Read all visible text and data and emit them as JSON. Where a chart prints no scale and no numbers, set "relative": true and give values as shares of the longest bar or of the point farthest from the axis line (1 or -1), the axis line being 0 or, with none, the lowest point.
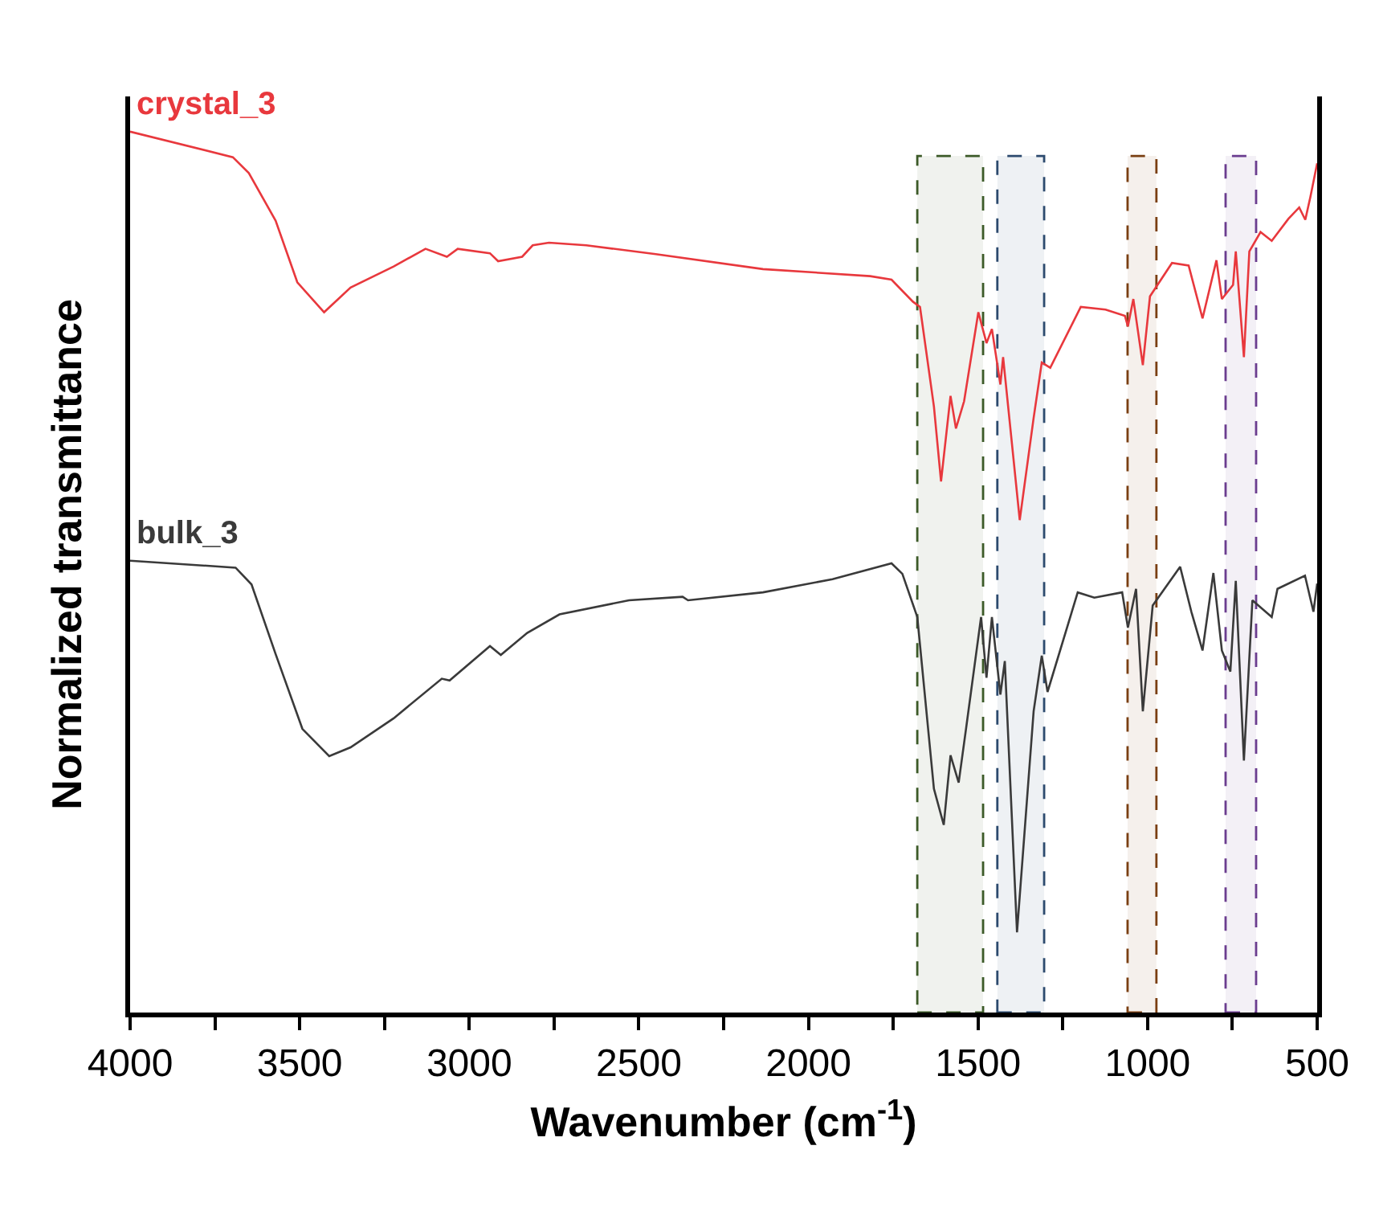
{
  "chart_data": {
    "type": "line",
    "relative": true,
    "xlabel": "Wavenumber (cm$^{-1}$)",
    "ylabel": "Normalized transmittance",
    "xlim": [
      4000,
      500
    ],
    "xticks": [
      4000,
      {
        "value": 3750,
        "label": null
      },
      3500,
      {
        "value": 3250,
        "label": null
      },
      3000,
      {
        "value": 2750,
        "label": null
      },
      2500,
      {
        "value": 2250,
        "label": null
      },
      2000,
      {
        "value": 1750,
        "label": null
      },
      1500,
      {
        "value": 1250,
        "label": null
      },
      1000,
      {
        "value": 750,
        "label": null
      },
      500
    ],
    "legend": false,
    "grid": false,
    "marker": "none",
    "line_style": "solid",
    "series": [
      {
        "name": "crystal_3",
        "color": "#e8383d",
        "x": [
          4000,
          3697,
          3650,
          3571,
          3507,
          3428,
          3350,
          3223,
          3129,
          3066,
          3034,
          2939,
          2915,
          2844,
          2813,
          2765,
          2655,
          2450,
          2134,
          1818,
          1755,
          1692,
          1671,
          1630,
          1609,
          1581,
          1565,
          1541,
          1499,
          1475,
          1459,
          1434,
          1426,
          1377,
          1336,
          1312,
          1287,
          1197,
          1124,
          1067,
          1058,
          1042,
          1014,
          993,
          928,
          879,
          838,
          797,
          781,
          748,
          740,
          716,
          700,
          667,
          634,
          585,
          553,
          535,
          520,
          500
        ],
        "values": [
          1.0,
          0.971,
          0.953,
          0.899,
          0.829,
          0.795,
          0.823,
          0.847,
          0.867,
          0.858,
          0.867,
          0.862,
          0.853,
          0.858,
          0.871,
          0.874,
          0.871,
          0.861,
          0.844,
          0.836,
          0.832,
          0.807,
          0.801,
          0.688,
          0.603,
          0.7,
          0.663,
          0.694,
          0.795,
          0.76,
          0.776,
          0.713,
          0.744,
          0.559,
          0.675,
          0.738,
          0.732,
          0.801,
          0.798,
          0.791,
          0.779,
          0.81,
          0.735,
          0.813,
          0.851,
          0.848,
          0.788,
          0.854,
          0.81,
          0.826,
          0.864,
          0.744,
          0.864,
          0.886,
          0.876,
          0.901,
          0.914,
          0.9,
          0.926,
          0.964
        ]
      },
      {
        "name": "bulk_3",
        "color": "#3a3a3a",
        "x": [
          4000,
          3689,
          3642,
          3571,
          3492,
          3413,
          3350,
          3223,
          3081,
          3058,
          2939,
          2907,
          2829,
          2734,
          2529,
          2371,
          2355,
          2134,
          1929,
          1755,
          1723,
          1679,
          1630,
          1601,
          1581,
          1557,
          1535,
          1491,
          1475,
          1459,
          1434,
          1421,
          1385,
          1336,
          1312,
          1295,
          1206,
          1157,
          1075,
          1058,
          1034,
          1014,
          985,
          904,
          871,
          838,
          806,
          781,
          756,
          740,
          716,
          691,
          634,
          617,
          536,
          511,
          500
        ],
        "values": [
          0.513,
          0.505,
          0.486,
          0.407,
          0.322,
          0.291,
          0.301,
          0.334,
          0.379,
          0.377,
          0.416,
          0.406,
          0.431,
          0.452,
          0.468,
          0.472,
          0.468,
          0.477,
          0.492,
          0.51,
          0.498,
          0.449,
          0.254,
          0.213,
          0.292,
          0.261,
          0.323,
          0.449,
          0.38,
          0.449,
          0.361,
          0.399,
          0.091,
          0.342,
          0.405,
          0.364,
          0.477,
          0.471,
          0.477,
          0.437,
          0.481,
          0.342,
          0.462,
          0.506,
          0.455,
          0.411,
          0.499,
          0.411,
          0.387,
          0.49,
          0.286,
          0.468,
          0.449,
          0.481,
          0.496,
          0.455,
          0.487
        ]
      }
    ],
    "bands": [
      {
        "axis": "x",
        "from": 1679,
        "to": 1485,
        "color": "#3c5a28"
      },
      {
        "axis": "x",
        "from": 1443,
        "to": 1305,
        "color": "#2c4a6e"
      },
      {
        "axis": "x",
        "from": 1059,
        "to": 974,
        "color": "#7a3f12"
      },
      {
        "axis": "x",
        "from": 770,
        "to": 680,
        "color": "#6b3d8f"
      }
    ]
  }
}
